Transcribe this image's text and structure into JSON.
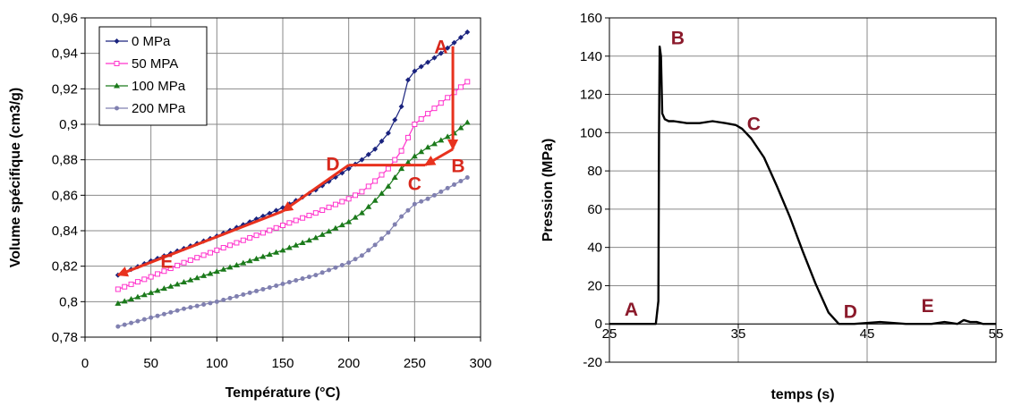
{
  "chart_data": [
    {
      "type": "line",
      "xlabel": "Température (°C)",
      "ylabel": "Volume spécifique (cm3/g)",
      "xlim": [
        0,
        300
      ],
      "ylim": [
        0.78,
        0.96
      ],
      "x_ticks": [
        "0",
        "50",
        "100",
        "150",
        "200",
        "250",
        "300"
      ],
      "y_ticks": [
        "0,78",
        "0,8",
        "0,82",
        "0,84",
        "0,86",
        "0,88",
        "0,9",
        "0,92",
        "0,94",
        "0,96"
      ],
      "grid": true,
      "legend_position": "top-left",
      "series": [
        {
          "name": "0 MPa",
          "color": "#1a237e",
          "marker": "diamond",
          "x": [
            25,
            50,
            75,
            100,
            125,
            150,
            175,
            200,
            210,
            220,
            230,
            240,
            245,
            250,
            260,
            270,
            280,
            290
          ],
          "y": [
            0.815,
            0.823,
            0.83,
            0.837,
            0.845,
            0.853,
            0.863,
            0.875,
            0.88,
            0.886,
            0.895,
            0.91,
            0.925,
            0.93,
            0.935,
            0.94,
            0.946,
            0.952
          ]
        },
        {
          "name": "50 MPA",
          "color": "#ff33cc",
          "marker": "square",
          "x": [
            25,
            50,
            75,
            100,
            125,
            150,
            175,
            200,
            210,
            220,
            230,
            240,
            250,
            260,
            270,
            280,
            290
          ],
          "y": [
            0.807,
            0.814,
            0.822,
            0.829,
            0.836,
            0.843,
            0.85,
            0.858,
            0.862,
            0.868,
            0.875,
            0.885,
            0.9,
            0.906,
            0.912,
            0.918,
            0.924
          ]
        },
        {
          "name": "100 MPa",
          "color": "#1b7a1b",
          "marker": "triangle",
          "x": [
            25,
            50,
            75,
            100,
            125,
            150,
            175,
            200,
            210,
            220,
            230,
            240,
            250,
            260,
            270,
            280,
            290
          ],
          "y": [
            0.799,
            0.805,
            0.811,
            0.817,
            0.823,
            0.829,
            0.836,
            0.845,
            0.85,
            0.857,
            0.865,
            0.875,
            0.882,
            0.887,
            0.891,
            0.895,
            0.901
          ]
        },
        {
          "name": "200 MPa",
          "color": "#8080b0",
          "marker": "circle",
          "x": [
            25,
            50,
            75,
            100,
            125,
            150,
            175,
            200,
            210,
            220,
            230,
            240,
            250,
            260,
            270,
            280,
            290
          ],
          "y": [
            0.786,
            0.791,
            0.796,
            0.8,
            0.805,
            0.81,
            0.815,
            0.822,
            0.826,
            0.832,
            0.839,
            0.848,
            0.855,
            0.858,
            0.862,
            0.866,
            0.87
          ]
        }
      ],
      "annotations": [
        {
          "text": "A",
          "x": 270,
          "y": 0.944
        },
        {
          "text": "B",
          "x": 283,
          "y": 0.877
        },
        {
          "text": "C",
          "x": 250,
          "y": 0.867
        },
        {
          "text": "D",
          "x": 188,
          "y": 0.878
        },
        {
          "text": "E",
          "x": 62,
          "y": 0.823
        }
      ],
      "arrow_color": "#e8321e",
      "arrow_path": {
        "x": [
          279,
          279,
          258,
          200,
          150,
          25
        ],
        "y": [
          0.944,
          0.886,
          0.877,
          0.877,
          0.851,
          0.815
        ]
      }
    },
    {
      "type": "line",
      "xlabel": "temps (s)",
      "ylabel": "Pression (MPa)",
      "xlim": [
        25,
        55
      ],
      "ylim": [
        -20,
        160
      ],
      "x_ticks": [
        "25",
        "35",
        "45",
        "55"
      ],
      "y_ticks": [
        "-20",
        "0",
        "20",
        "40",
        "60",
        "80",
        "100",
        "120",
        "140",
        "160"
      ],
      "grid": true,
      "series": [
        {
          "color": "#000000",
          "x": [
            25,
            28.6,
            28.8,
            28.85,
            28.9,
            29.0,
            29.1,
            29.3,
            29.6,
            30,
            31,
            32,
            33,
            34,
            34.8,
            35.3,
            36,
            37,
            38,
            39,
            40,
            41,
            42,
            42.8,
            43.2,
            44,
            46,
            48,
            50,
            51,
            52,
            52.5,
            53,
            53.5,
            54,
            55
          ],
          "y": [
            0,
            0,
            12,
            100,
            145,
            140,
            110,
            107,
            106,
            106,
            105,
            105,
            106,
            105,
            104,
            102,
            97,
            87,
            72,
            56,
            38,
            21,
            6,
            0,
            0,
            0,
            1,
            0,
            0,
            1,
            0,
            2,
            1,
            1,
            0,
            0
          ]
        }
      ],
      "annotations": [
        {
          "text": "A",
          "x": 26.7,
          "y": 8
        },
        {
          "text": "B",
          "x": 30.3,
          "y": 150
        },
        {
          "text": "C",
          "x": 36.2,
          "y": 105
        },
        {
          "text": "D",
          "x": 43.7,
          "y": 7
        },
        {
          "text": "E",
          "x": 49.7,
          "y": 10
        }
      ],
      "annotation_color": "#8b1a2b"
    }
  ]
}
